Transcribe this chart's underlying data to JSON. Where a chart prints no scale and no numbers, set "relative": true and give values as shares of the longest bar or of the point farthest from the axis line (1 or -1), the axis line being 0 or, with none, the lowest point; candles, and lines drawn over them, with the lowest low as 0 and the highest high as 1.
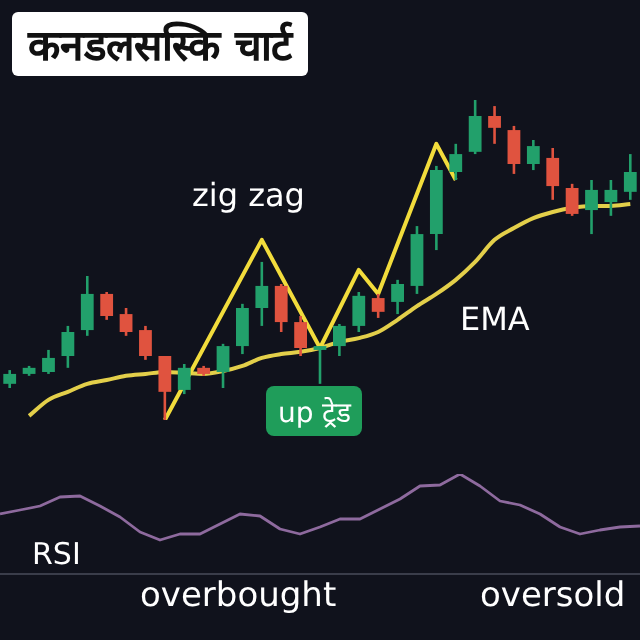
{
  "chart_data": [
    {
      "type": "candlestick",
      "title": "कनडलसस्कि चार्ट",
      "relative": true,
      "categories": [
        null,
        null,
        null,
        null,
        null,
        null,
        null,
        null,
        null,
        null,
        null,
        null,
        null,
        null,
        null,
        null,
        null,
        null,
        null,
        null,
        null,
        null,
        null,
        null,
        null,
        null,
        null,
        null,
        null,
        null,
        null,
        null,
        null
      ],
      "ohlc": [
        [
          0.113,
          0.156,
          0.1,
          0.144
        ],
        [
          0.144,
          0.169,
          0.138,
          0.163
        ],
        [
          0.15,
          0.219,
          0.144,
          0.194
        ],
        [
          0.2,
          0.294,
          0.163,
          0.275
        ],
        [
          0.281,
          0.45,
          0.263,
          0.394
        ],
        [
          0.394,
          0.4,
          0.313,
          0.325
        ],
        [
          0.331,
          0.35,
          0.263,
          0.275
        ],
        [
          0.281,
          0.294,
          0.188,
          0.2
        ],
        [
          0.2,
          0.2,
          0,
          0.088
        ],
        [
          0.094,
          0.175,
          0.081,
          0.163
        ],
        [
          0.163,
          0.169,
          0.138,
          0.144
        ],
        [
          0.15,
          0.238,
          0.1,
          0.231
        ],
        [
          0.231,
          0.363,
          0.206,
          0.35
        ],
        [
          0.35,
          0.494,
          0.294,
          0.419
        ],
        [
          0.419,
          0.425,
          0.275,
          0.306
        ],
        [
          0.306,
          0.325,
          0.2,
          0.225
        ],
        [
          0.219,
          0.231,
          0.113,
          0.231
        ],
        [
          0.231,
          0.3,
          0.2,
          0.294
        ],
        [
          0.294,
          0.4,
          0.275,
          0.388
        ],
        [
          0.381,
          0.394,
          0.319,
          0.338
        ],
        [
          0.369,
          0.438,
          0.331,
          0.425
        ],
        [
          0.419,
          0.606,
          0.394,
          0.581
        ],
        [
          0.581,
          0.794,
          0.531,
          0.781
        ],
        [
          0.775,
          0.863,
          0.75,
          0.831
        ],
        [
          0.838,
          1,
          0.831,
          0.95
        ],
        [
          0.95,
          0.981,
          0.863,
          0.913
        ],
        [
          0.906,
          0.919,
          0.769,
          0.8
        ],
        [
          0.8,
          0.875,
          0.781,
          0.856
        ],
        [
          0.819,
          0.85,
          0.688,
          0.731
        ],
        [
          0.725,
          0.738,
          0.638,
          0.644
        ],
        [
          0.656,
          0.75,
          0.581,
          0.719
        ],
        [
          0.681,
          0.75,
          0.638,
          0.719
        ],
        [
          0.713,
          0.831,
          0.688,
          0.775
        ]
      ],
      "colors": [
        "#22a06b",
        "#22a06b",
        "#22a06b",
        "#22a06b",
        "#22a06b",
        "#e0533f",
        "#e0533f",
        "#e0533f",
        "#e0533f",
        "#22a06b",
        "#e0533f",
        "#22a06b",
        "#22a06b",
        "#22a06b",
        "#e0533f",
        "#e0533f",
        "#22a06b",
        "#22a06b",
        "#22a06b",
        "#e0533f",
        "#22a06b",
        "#22a06b",
        "#22a06b",
        "#22a06b",
        "#22a06b",
        "#e0533f",
        "#e0533f",
        "#22a06b",
        "#e0533f",
        "#e0533f",
        "#22a06b",
        "#22a06b",
        "#22a06b"
      ],
      "series": [
        {
          "type": "line",
          "name": "zig zag",
          "color": "#f2dc3c",
          "values": [
            null,
            null,
            null,
            null,
            null,
            null,
            null,
            null,
            0,
            null,
            null,
            null,
            null,
            0.563,
            null,
            null,
            0.225,
            null,
            0.469,
            0.394,
            null,
            null,
            0.863,
            0.75,
            null,
            null,
            null,
            null,
            null,
            null,
            null,
            null,
            null
          ]
        },
        {
          "type": "line",
          "name": "EMA",
          "color": "#e3cf4a",
          "values": [
            null,
            0.013,
            0.063,
            0.088,
            0.113,
            0.125,
            0.138,
            0.144,
            0.15,
            0.147,
            0.144,
            0.153,
            0.169,
            0.194,
            0.206,
            0.213,
            0.225,
            0.244,
            0.256,
            0.275,
            0.313,
            0.356,
            0.394,
            0.438,
            0.494,
            0.563,
            0.6,
            0.631,
            0.65,
            0.663,
            0.669,
            0.669,
            0.675
          ]
        }
      ],
      "annotations": [
        "up ट्रेड"
      ]
    },
    {
      "type": "line",
      "relative": true,
      "categories": [
        null,
        null,
        null,
        null,
        null,
        null,
        null,
        null,
        null,
        null,
        null,
        null,
        null,
        null,
        null,
        null,
        null,
        null,
        null,
        null,
        null,
        null,
        null,
        null,
        null,
        null,
        null,
        null,
        null,
        null,
        null,
        null,
        null
      ],
      "series": [
        {
          "name": "RSI",
          "color": "#8e6a9e",
          "values": [
            0.6,
            0.64,
            0.68,
            0.77,
            0.78,
            0.68,
            0.57,
            0.42,
            0.34,
            0.4,
            0.4,
            0.5,
            0.6,
            0.58,
            0.45,
            0.4,
            0.47,
            0.55,
            0.55,
            0.65,
            0.75,
            0.88,
            0.89,
            1,
            0.88,
            0.73,
            0.69,
            0.6,
            0.47,
            0.4,
            0.44,
            0.47,
            0.48
          ]
        }
      ],
      "annotations": [
        "overbought",
        "oversold"
      ]
    }
  ]
}
